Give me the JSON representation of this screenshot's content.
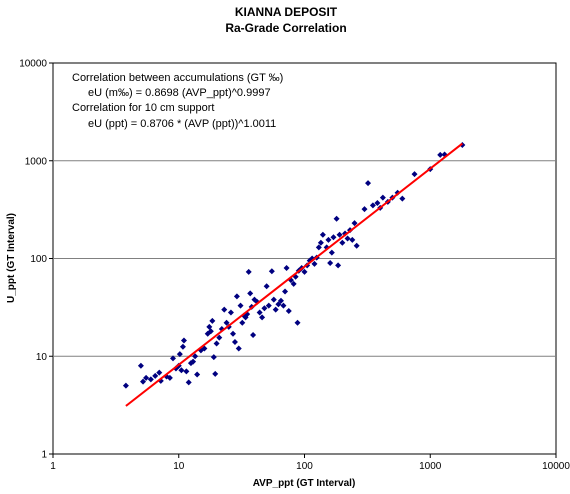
{
  "chart_data": {
    "type": "scatter",
    "title": "KIANNA DEPOSIT",
    "subtitle": "Ra-Grade Correlation",
    "xlabel": "AVP_ppt (GT Interval)",
    "ylabel": "U_ppt (GT Interval)",
    "x_scale": "log",
    "y_scale": "log",
    "xlim": [
      1,
      10000
    ],
    "ylim": [
      1,
      10000
    ],
    "x_ticks": [
      "1",
      "10",
      "100",
      "1000",
      "10000"
    ],
    "y_ticks": [
      "1",
      "10",
      "100",
      "1000",
      "10000"
    ],
    "grid": "horizontal major",
    "annotations": [
      "Correlation between accumulations (GT ‰)",
      "eU (m‰) = 0.8698 (AVP_ppt)^0.9997",
      "Correlation for 10 cm support",
      "eU (ppt) = 0.8706 * (AVP (ppt))^1.0011"
    ],
    "colors": {
      "points": "#000080",
      "fit_line": "#ff0000",
      "gridline": "#808080"
    },
    "fit_line": {
      "x": [
        3.8,
        1800
      ],
      "y": [
        3.1,
        1500
      ]
    },
    "points": [
      [
        3.8,
        5.0
      ],
      [
        5.0,
        8.0
      ],
      [
        5.2,
        5.5
      ],
      [
        5.5,
        6.0
      ],
      [
        6.0,
        5.8
      ],
      [
        6.5,
        6.3
      ],
      [
        7.0,
        6.8
      ],
      [
        7.2,
        5.6
      ],
      [
        8.0,
        6.2
      ],
      [
        8.5,
        6.0
      ],
      [
        9.0,
        9.5
      ],
      [
        9.5,
        7.5
      ],
      [
        10.0,
        8.0
      ],
      [
        10.2,
        10.5
      ],
      [
        10.5,
        7.2
      ],
      [
        10.8,
        12.5
      ],
      [
        11.0,
        14.5
      ],
      [
        11.5,
        7.0
      ],
      [
        12.0,
        5.4
      ],
      [
        12.5,
        8.5
      ],
      [
        13.0,
        8.8
      ],
      [
        13.5,
        10.0
      ],
      [
        14.0,
        6.5
      ],
      [
        15.0,
        11.5
      ],
      [
        16.0,
        12.0
      ],
      [
        17.0,
        17.0
      ],
      [
        17.5,
        20.0
      ],
      [
        18.0,
        18.0
      ],
      [
        18.5,
        23.0
      ],
      [
        19.0,
        9.8
      ],
      [
        19.5,
        6.6
      ],
      [
        20.0,
        13.5
      ],
      [
        21.0,
        15.5
      ],
      [
        22.0,
        19.0
      ],
      [
        23.0,
        30.0
      ],
      [
        24.0,
        22.0
      ],
      [
        25.0,
        20.0
      ],
      [
        26.0,
        28.0
      ],
      [
        27.0,
        17.0
      ],
      [
        28.0,
        14.0
      ],
      [
        29.0,
        41.0
      ],
      [
        30.0,
        12.0
      ],
      [
        31.0,
        33.0
      ],
      [
        32.0,
        22.0
      ],
      [
        33.0,
        26.0
      ],
      [
        34.0,
        25.0
      ],
      [
        35.0,
        27.0
      ],
      [
        36.0,
        73.0
      ],
      [
        37.0,
        44.0
      ],
      [
        38.0,
        32.0
      ],
      [
        39.0,
        16.5
      ],
      [
        40.0,
        38.0
      ],
      [
        42.0,
        36.0
      ],
      [
        44.0,
        28.0
      ],
      [
        46.0,
        25.0
      ],
      [
        48.0,
        31.0
      ],
      [
        50.0,
        52.0
      ],
      [
        52.0,
        33.0
      ],
      [
        55.0,
        74.0
      ],
      [
        57.0,
        38.0
      ],
      [
        59.0,
        30.0
      ],
      [
        62.0,
        34.0
      ],
      [
        65.0,
        37.0
      ],
      [
        68.0,
        33.0
      ],
      [
        70.0,
        46.0
      ],
      [
        72.0,
        80.0
      ],
      [
        75.0,
        29.0
      ],
      [
        78.0,
        60.0
      ],
      [
        82.0,
        55.0
      ],
      [
        85.0,
        65.0
      ],
      [
        88.0,
        22.0
      ],
      [
        90.0,
        75.0
      ],
      [
        95.0,
        80.0
      ],
      [
        100.0,
        73.0
      ],
      [
        105.0,
        85.0
      ],
      [
        110.0,
        95.0
      ],
      [
        115.0,
        100.0
      ],
      [
        120.0,
        88.0
      ],
      [
        125.0,
        102.0
      ],
      [
        130.0,
        130.0
      ],
      [
        135.0,
        145.0
      ],
      [
        140.0,
        175.0
      ],
      [
        150.0,
        130.0
      ],
      [
        155.0,
        155.0
      ],
      [
        160.0,
        90.0
      ],
      [
        165.0,
        115.0
      ],
      [
        170.0,
        165.0
      ],
      [
        180.0,
        255.0
      ],
      [
        185.0,
        85.0
      ],
      [
        190.0,
        175.0
      ],
      [
        200.0,
        145.0
      ],
      [
        210.0,
        180.0
      ],
      [
        220.0,
        160.0
      ],
      [
        230.0,
        195.0
      ],
      [
        240.0,
        155.0
      ],
      [
        250.0,
        230.0
      ],
      [
        260.0,
        135.0
      ],
      [
        300.0,
        320.0
      ],
      [
        320.0,
        590.0
      ],
      [
        350.0,
        350.0
      ],
      [
        380.0,
        370.0
      ],
      [
        400.0,
        330.0
      ],
      [
        420.0,
        420.0
      ],
      [
        460.0,
        380.0
      ],
      [
        500.0,
        420.0
      ],
      [
        550.0,
        470.0
      ],
      [
        600.0,
        410.0
      ],
      [
        750.0,
        730.0
      ],
      [
        1000.0,
        820.0
      ],
      [
        1200.0,
        1150.0
      ],
      [
        1300.0,
        1160.0
      ],
      [
        1800.0,
        1450.0
      ]
    ]
  }
}
